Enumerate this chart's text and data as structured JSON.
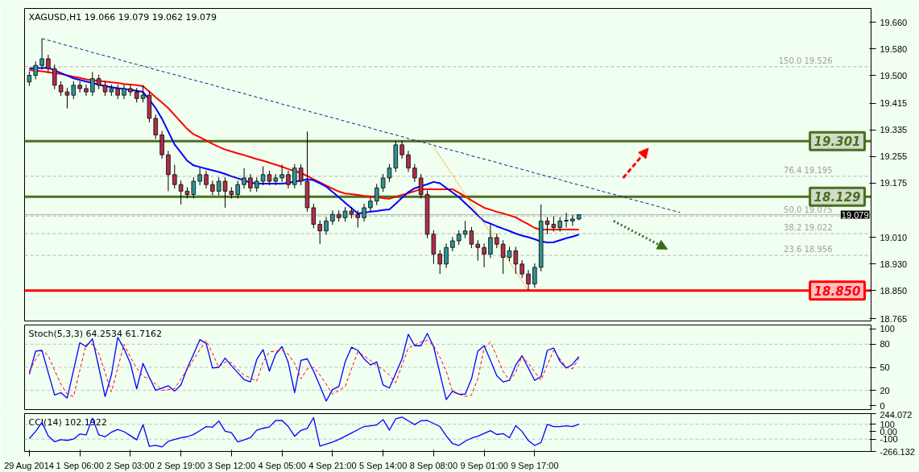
{
  "chart_data": [
    {
      "type": "candlestick",
      "title": "XAGUSD,H1  19.066 19.079 19.062 19.079",
      "categories": [
        null,
        null,
        null,
        null,
        null,
        null,
        null,
        null,
        null,
        null,
        null,
        null,
        null,
        null,
        null,
        null,
        null,
        null,
        null,
        null,
        null,
        null,
        null,
        null,
        null,
        null,
        null,
        null,
        null,
        null,
        null,
        null,
        null,
        null,
        null,
        null,
        null,
        null,
        null,
        null,
        null,
        null,
        null,
        null,
        null,
        null,
        null,
        null,
        null,
        null,
        null,
        null,
        null,
        null,
        null,
        null,
        null,
        null,
        null,
        null,
        null,
        null,
        null,
        null,
        null,
        null,
        null,
        null,
        null,
        null,
        null,
        null,
        null,
        null,
        null,
        null,
        null,
        null,
        null,
        null,
        null,
        null,
        null,
        null,
        null,
        null,
        null,
        null,
        null,
        null,
        null,
        null,
        null,
        null,
        null,
        null,
        null,
        null,
        null,
        null,
        null,
        null,
        null,
        null,
        null,
        null,
        null,
        null,
        null,
        null,
        null,
        null,
        null,
        null,
        null,
        null,
        null,
        null,
        null,
        null,
        null,
        null,
        null,
        null,
        null,
        null,
        null,
        null,
        null,
        null,
        null,
        null,
        null,
        null
      ],
      "ohlc": [
        [
          19.48,
          19.512,
          19.468,
          19.5
        ],
        [
          19.5,
          19.542,
          19.488,
          19.53
        ],
        [
          19.53,
          19.611,
          19.518,
          19.55
        ],
        [
          19.55,
          19.562,
          19.508,
          19.52
        ],
        [
          19.52,
          19.532,
          19.458,
          19.47
        ],
        [
          19.47,
          19.482,
          19.438,
          19.45
        ],
        [
          19.45,
          19.462,
          19.4,
          19.44
        ],
        [
          19.44,
          19.482,
          19.428,
          19.47
        ],
        [
          19.47,
          19.482,
          19.448,
          19.46
        ],
        [
          19.46,
          19.472,
          19.438,
          19.45
        ],
        [
          19.45,
          19.51,
          19.438,
          19.49
        ],
        [
          19.49,
          19.502,
          19.458,
          19.47
        ],
        [
          19.47,
          19.482,
          19.438,
          19.45
        ],
        [
          19.45,
          19.472,
          19.438,
          19.46
        ],
        [
          19.46,
          19.472,
          19.428,
          19.44
        ],
        [
          19.44,
          19.472,
          19.428,
          19.46
        ],
        [
          19.46,
          19.472,
          19.438,
          19.45
        ],
        [
          19.45,
          19.462,
          19.418,
          19.43
        ],
        [
          19.43,
          19.47,
          19.418,
          19.44
        ],
        [
          19.44,
          19.452,
          19.358,
          19.37
        ],
        [
          19.37,
          19.382,
          19.308,
          19.32
        ],
        [
          19.32,
          19.332,
          19.248,
          19.26
        ],
        [
          19.26,
          19.272,
          19.15,
          19.2
        ],
        [
          19.2,
          19.23,
          19.158,
          19.17
        ],
        [
          19.17,
          19.182,
          19.11,
          19.15
        ],
        [
          19.15,
          19.162,
          19.128,
          19.14
        ],
        [
          19.14,
          19.192,
          19.128,
          19.18
        ],
        [
          19.18,
          19.222,
          19.168,
          19.2
        ],
        [
          19.2,
          19.212,
          19.158,
          19.17
        ],
        [
          19.17,
          19.182,
          19.138,
          19.15
        ],
        [
          19.15,
          19.192,
          19.138,
          19.18
        ],
        [
          19.18,
          19.192,
          19.1,
          19.15
        ],
        [
          19.15,
          19.162,
          19.128,
          19.14
        ],
        [
          19.14,
          19.182,
          19.128,
          19.17
        ],
        [
          19.17,
          19.22,
          19.158,
          19.19
        ],
        [
          19.19,
          19.202,
          19.148,
          19.16
        ],
        [
          19.16,
          19.192,
          19.148,
          19.18
        ],
        [
          19.18,
          19.225,
          19.168,
          19.2
        ],
        [
          19.2,
          19.212,
          19.168,
          19.18
        ],
        [
          19.18,
          19.202,
          19.168,
          19.19
        ],
        [
          19.19,
          19.23,
          19.178,
          19.2
        ],
        [
          19.2,
          19.212,
          19.158,
          19.17
        ],
        [
          19.17,
          19.232,
          19.158,
          19.22
        ],
        [
          19.22,
          19.232,
          19.168,
          19.18
        ],
        [
          19.18,
          19.33,
          19.088,
          19.1
        ],
        [
          19.1,
          19.112,
          19.038,
          19.05
        ],
        [
          19.05,
          19.062,
          18.99,
          19.03
        ],
        [
          19.03,
          19.072,
          19.018,
          19.06
        ],
        [
          19.06,
          19.092,
          19.048,
          19.08
        ],
        [
          19.08,
          19.092,
          19.058,
          19.07
        ],
        [
          19.07,
          19.102,
          19.058,
          19.09
        ],
        [
          19.09,
          19.102,
          19.068,
          19.08
        ],
        [
          19.08,
          19.092,
          19.04,
          19.07
        ],
        [
          19.07,
          19.112,
          19.058,
          19.1
        ],
        [
          19.1,
          19.132,
          19.088,
          19.12
        ],
        [
          19.12,
          19.172,
          19.108,
          19.16
        ],
        [
          19.16,
          19.202,
          19.148,
          19.19
        ],
        [
          19.19,
          19.232,
          19.178,
          19.22
        ],
        [
          19.22,
          19.302,
          19.208,
          19.29
        ],
        [
          19.29,
          19.302,
          19.248,
          19.26
        ],
        [
          19.26,
          19.272,
          19.208,
          19.22
        ],
        [
          19.22,
          19.232,
          19.178,
          19.19
        ],
        [
          19.19,
          19.202,
          19.128,
          19.14
        ],
        [
          19.14,
          19.152,
          19.008,
          19.02
        ],
        [
          19.02,
          19.032,
          18.93,
          18.96
        ],
        [
          18.96,
          18.972,
          18.9,
          18.93
        ],
        [
          18.93,
          18.992,
          18.918,
          18.98
        ],
        [
          18.98,
          19.012,
          18.968,
          19.0
        ],
        [
          19.0,
          19.032,
          18.988,
          19.02
        ],
        [
          19.02,
          19.06,
          19.008,
          19.03
        ],
        [
          19.03,
          19.042,
          18.978,
          18.99
        ],
        [
          18.99,
          19.002,
          18.94,
          18.98
        ],
        [
          18.98,
          18.992,
          18.92,
          18.96
        ],
        [
          18.96,
          19.05,
          18.948,
          19.01
        ],
        [
          19.01,
          19.022,
          18.978,
          18.99
        ],
        [
          18.99,
          19.002,
          18.9,
          18.95
        ],
        [
          18.95,
          18.982,
          18.938,
          18.97
        ],
        [
          18.97,
          18.982,
          18.9,
          18.93
        ],
        [
          18.93,
          18.942,
          18.888,
          18.9
        ],
        [
          18.9,
          18.912,
          18.85,
          18.87
        ],
        [
          18.87,
          18.932,
          18.858,
          18.92
        ],
        [
          18.92,
          19.11,
          18.908,
          19.06
        ],
        [
          19.06,
          19.072,
          19.02,
          19.05
        ],
        [
          19.05,
          19.075,
          19.028,
          19.04
        ],
        [
          19.04,
          19.072,
          19.028,
          19.06
        ],
        [
          19.06,
          19.085,
          19.04,
          19.062
        ],
        [
          19.06,
          19.078,
          19.045,
          19.066
        ],
        [
          19.066,
          19.079,
          19.062,
          19.079
        ],
        null,
        null,
        null,
        null,
        null,
        null,
        null,
        null,
        null,
        null,
        null,
        null,
        null,
        null,
        null,
        null,
        null,
        null,
        null,
        null,
        null,
        null,
        null,
        null,
        null,
        null,
        null,
        null,
        null,
        null,
        null,
        null,
        null,
        null,
        null,
        null,
        null,
        null,
        null,
        null,
        null,
        null,
        null,
        null,
        null,
        null
      ],
      "colors": [
        "#2e9494",
        "#2e9494",
        "#2e9494",
        "#b22d4b",
        "#b22d4b",
        "#b22d4b",
        "#b22d4b",
        "#2e9494",
        "#b22d4b",
        "#b22d4b",
        "#2e9494",
        "#b22d4b",
        "#b22d4b",
        "#2e9494",
        "#b22d4b",
        "#2e9494",
        "#b22d4b",
        "#b22d4b",
        "#2e9494",
        "#b22d4b",
        "#b22d4b",
        "#b22d4b",
        "#b22d4b",
        "#b22d4b",
        "#b22d4b",
        "#b22d4b",
        "#2e9494",
        "#2e9494",
        "#b22d4b",
        "#b22d4b",
        "#2e9494",
        "#b22d4b",
        "#b22d4b",
        "#2e9494",
        "#2e9494",
        "#b22d4b",
        "#2e9494",
        "#2e9494",
        "#b22d4b",
        "#2e9494",
        "#2e9494",
        "#b22d4b",
        "#2e9494",
        "#b22d4b",
        "#b22d4b",
        "#b22d4b",
        "#b22d4b",
        "#2e9494",
        "#2e9494",
        "#b22d4b",
        "#2e9494",
        "#b22d4b",
        "#b22d4b",
        "#2e9494",
        "#2e9494",
        "#2e9494",
        "#2e9494",
        "#2e9494",
        "#2e9494",
        "#b22d4b",
        "#b22d4b",
        "#b22d4b",
        "#b22d4b",
        "#b22d4b",
        "#b22d4b",
        "#b22d4b",
        "#2e9494",
        "#2e9494",
        "#2e9494",
        "#2e9494",
        "#b22d4b",
        "#b22d4b",
        "#b22d4b",
        "#2e9494",
        "#b22d4b",
        "#b22d4b",
        "#2e9494",
        "#b22d4b",
        "#b22d4b",
        "#b22d4b",
        "#2e9494",
        "#2e9494",
        "#b22d4b",
        "#b22d4b",
        "#2e9494",
        "#2e9494",
        "#2e9494",
        "#2e9494",
        null,
        null,
        null,
        null,
        null,
        null,
        null,
        null,
        null,
        null,
        null,
        null,
        null,
        null,
        null,
        null,
        null,
        null,
        null,
        null,
        null,
        null,
        null,
        null,
        null,
        null,
        null,
        null,
        null,
        null,
        null,
        null,
        null,
        null,
        null,
        null,
        null,
        null,
        null,
        null,
        null,
        null,
        null,
        null,
        null,
        null
      ],
      "series": [
        {
          "type": "line",
          "color": "#ff0000",
          "line_style": "solid",
          "values": [
            19.516,
            19.514,
            19.512,
            19.509,
            19.507,
            19.504,
            19.5,
            19.496,
            19.492,
            19.488,
            19.485,
            19.483,
            19.481,
            19.479,
            19.477,
            19.474,
            19.472,
            19.47,
            19.467,
            19.451,
            19.434,
            19.418,
            19.401,
            19.38,
            19.359,
            19.338,
            19.322,
            19.313,
            19.303,
            19.293,
            19.284,
            19.276,
            19.27,
            19.264,
            19.259,
            19.253,
            19.247,
            19.242,
            19.236,
            19.23,
            19.224,
            19.217,
            19.211,
            19.205,
            19.196,
            19.186,
            19.177,
            19.167,
            19.158,
            19.149,
            19.143,
            19.141,
            19.139,
            19.136,
            19.134,
            19.132,
            19.129,
            19.127,
            19.133,
            19.139,
            19.144,
            19.15,
            19.156,
            19.156,
            19.156,
            19.156,
            19.156,
            19.156,
            19.145,
            19.134,
            19.122,
            19.111,
            19.1,
            19.094,
            19.088,
            19.083,
            19.077,
            19.071,
            19.06,
            19.05,
            19.039,
            19.034,
            19.034,
            19.034,
            19.034,
            19.034,
            19.034,
            19.034,
            null,
            null,
            null,
            null,
            null,
            null,
            null,
            null,
            null,
            null,
            null,
            null,
            null,
            null,
            null,
            null,
            null,
            null,
            null,
            null,
            null,
            null,
            null,
            null,
            null,
            null,
            null,
            null,
            null,
            null,
            null,
            null,
            null,
            null,
            null,
            null,
            null,
            null,
            null,
            null,
            null,
            null,
            null,
            null,
            null,
            null
          ]
        },
        {
          "type": "line",
          "color": "#0000ff",
          "line_style": "solid",
          "values": [
            19.521,
            19.522,
            19.522,
            19.523,
            19.515,
            19.507,
            19.499,
            19.491,
            19.486,
            19.481,
            19.477,
            19.472,
            19.467,
            19.464,
            19.461,
            19.459,
            19.456,
            19.453,
            19.45,
            19.426,
            19.401,
            19.369,
            19.33,
            19.291,
            19.267,
            19.242,
            19.228,
            19.223,
            19.218,
            19.213,
            19.208,
            19.202,
            19.195,
            19.189,
            19.183,
            19.176,
            19.173,
            19.173,
            19.173,
            19.173,
            19.173,
            19.175,
            19.179,
            19.182,
            19.186,
            19.183,
            19.174,
            19.164,
            19.148,
            19.132,
            19.115,
            19.099,
            19.083,
            19.085,
            19.088,
            19.09,
            19.093,
            19.095,
            19.112,
            19.13,
            19.147,
            19.159,
            19.165,
            19.171,
            19.178,
            19.174,
            19.16,
            19.146,
            19.132,
            19.114,
            19.096,
            19.077,
            19.059,
            19.052,
            19.044,
            19.037,
            19.03,
            19.022,
            19.016,
            19.011,
            19.005,
            18.998,
            18.995,
            18.996,
            19.002,
            19.008,
            19.013,
            19.019,
            null,
            null,
            null,
            null,
            null,
            null,
            null,
            null,
            null,
            null,
            null,
            null,
            null,
            null,
            null,
            null,
            null,
            null,
            null,
            null,
            null,
            null,
            null,
            null,
            null,
            null,
            null,
            null,
            null,
            null,
            null,
            null,
            null,
            null,
            null,
            null,
            null,
            null,
            null,
            null,
            null,
            null,
            null,
            null,
            null,
            null
          ]
        },
        {
          "type": "line",
          "color": "#1a1a8c",
          "line_style": "dashed",
          "values": [
            null,
            null,
            19.611,
            19.606,
            19.601,
            19.595,
            19.59,
            19.585,
            19.58,
            19.575,
            19.569,
            19.564,
            19.559,
            19.554,
            19.549,
            19.543,
            19.538,
            19.533,
            19.528,
            19.523,
            19.517,
            19.512,
            19.507,
            19.502,
            19.497,
            19.491,
            19.486,
            19.481,
            19.476,
            19.471,
            19.465,
            19.46,
            19.455,
            19.45,
            19.445,
            19.439,
            19.434,
            19.429,
            19.424,
            19.419,
            19.413,
            19.408,
            19.403,
            19.398,
            19.393,
            19.387,
            19.382,
            19.377,
            19.372,
            19.367,
            19.361,
            19.356,
            19.351,
            19.346,
            19.341,
            19.335,
            19.33,
            19.325,
            19.32,
            19.315,
            19.309,
            19.304,
            19.299,
            19.294,
            19.289,
            19.283,
            19.278,
            19.273,
            19.268,
            19.263,
            19.257,
            19.252,
            19.247,
            19.242,
            19.237,
            19.231,
            19.226,
            19.221,
            19.216,
            19.211,
            19.205,
            19.2,
            19.195,
            19.19,
            19.185,
            19.179,
            19.174,
            19.169,
            19.164,
            19.159,
            19.153,
            19.148,
            19.143,
            19.138,
            19.133,
            19.127,
            19.122,
            19.117,
            19.112,
            19.107,
            19.101,
            19.096,
            19.091,
            19.086,
            null,
            null,
            null,
            null,
            null,
            null,
            null,
            null,
            null,
            null,
            null,
            null,
            null,
            null,
            null,
            null,
            null,
            null,
            null,
            null,
            null,
            null,
            null,
            null,
            null,
            null,
            null,
            null,
            null,
            null
          ]
        },
        {
          "type": "line",
          "color": "#ff9900",
          "line_style": "dotted",
          "values": [
            null,
            null,
            null,
            null,
            null,
            null,
            null,
            null,
            null,
            null,
            null,
            null,
            null,
            null,
            null,
            null,
            null,
            null,
            null,
            null,
            null,
            null,
            null,
            null,
            null,
            null,
            null,
            null,
            null,
            null,
            null,
            null,
            null,
            null,
            null,
            null,
            null,
            null,
            null,
            null,
            null,
            null,
            null,
            null,
            null,
            null,
            null,
            null,
            null,
            null,
            null,
            null,
            null,
            null,
            null,
            null,
            null,
            null,
            null,
            null,
            null,
            null,
            null,
            null,
            19.285,
            19.256,
            19.227,
            19.198,
            19.169,
            19.14,
            19.111,
            19.082,
            19.053,
            19.024,
            18.995,
            18.966,
            18.937,
            18.908,
            18.879,
            18.85,
            null,
            null,
            null,
            null,
            null,
            null,
            null,
            null,
            null,
            null,
            null,
            null,
            null,
            null,
            null,
            null,
            null,
            null,
            null,
            null,
            null,
            null,
            null,
            null,
            null,
            null,
            null,
            null,
            null,
            null,
            null,
            null,
            null,
            null,
            null,
            null,
            null,
            null,
            null,
            null,
            null,
            null,
            null,
            null,
            null,
            null,
            null,
            null,
            null,
            null,
            null,
            null,
            null,
            null
          ]
        }
      ],
      "ref_lines": [
        {
          "axis": "y",
          "value": 19.526,
          "label": "150.0 19.526",
          "color": "#b4b4b4",
          "line_style": "dashed"
        },
        {
          "axis": "y",
          "value": 19.195,
          "label": "76.4 19.195",
          "color": "#b4b4b4",
          "line_style": "dashed"
        },
        {
          "axis": "y",
          "value": 19.075,
          "label": "50.0 19.075",
          "color": "#b4b4b4",
          "line_style": "dashed"
        },
        {
          "axis": "y",
          "value": 19.022,
          "label": "38.2 19.022",
          "color": "#b4b4b4",
          "line_style": "dashed"
        },
        {
          "axis": "y",
          "value": 18.956,
          "label": "23.6 18.956",
          "color": "#b4b4b4",
          "line_style": "dashed"
        },
        {
          "axis": "y",
          "value": 19.301,
          "label": "19.301",
          "color": "#4a7020",
          "line_style": "solid"
        },
        {
          "axis": "y",
          "value": 19.133,
          "color": "#4a7020",
          "line_style": "solid"
        },
        {
          "axis": "y",
          "value": 18.85,
          "label": "18.850",
          "color": "#ff0000",
          "line_style": "solid"
        },
        {
          "axis": "y",
          "value": 19.079,
          "label": "19.079",
          "color": "#b0b0b0",
          "line_style": "solid"
        }
      ],
      "annotations": [
        {
          "text": "18.129",
          "y": 19.133
        }
      ],
      "ylim": [
        18.758,
        19.702
      ],
      "yticks": [
        {
          "value": 19.66,
          "label": "19.660"
        },
        {
          "value": 19.58,
          "label": "19.580"
        },
        {
          "value": 19.5,
          "label": "19.500"
        },
        {
          "value": 19.415,
          "label": "19.415"
        },
        {
          "value": 19.335,
          "label": "19.335"
        },
        {
          "value": 19.255,
          "label": "19.255"
        },
        {
          "value": 19.175,
          "label": "19.175"
        },
        {
          "value": 19.01,
          "label": "19.010"
        },
        {
          "value": 18.93,
          "label": "18.930"
        },
        {
          "value": 18.85,
          "label": "18.850"
        },
        {
          "value": 18.765,
          "label": "18.765"
        }
      ],
      "tick_labels": "y"
    },
    {
      "type": "line",
      "title": "Stoch(5,3,3) 64.2534 61.7162",
      "categories": [
        null,
        null,
        null,
        null,
        null,
        null,
        null,
        null,
        null,
        null,
        null,
        null,
        null,
        null,
        null,
        null,
        null,
        null,
        null,
        null,
        null,
        null,
        null,
        null,
        null,
        null,
        null,
        null,
        null,
        null,
        null,
        null,
        null,
        null,
        null,
        null,
        null,
        null,
        null,
        null,
        null,
        null,
        null,
        null,
        null,
        null,
        null,
        null,
        null,
        null,
        null,
        null,
        null,
        null,
        null,
        null,
        null,
        null,
        null,
        null,
        null,
        null,
        null,
        null,
        null,
        null,
        null,
        null,
        null,
        null,
        null,
        null,
        null,
        null,
        null,
        null,
        null,
        null,
        null,
        null,
        null,
        null,
        null,
        null,
        null,
        null,
        null,
        null,
        null,
        null,
        null,
        null,
        null,
        null,
        null,
        null,
        null,
        null,
        null,
        null,
        null,
        null,
        null,
        null,
        null,
        null,
        null,
        null,
        null,
        null,
        null,
        null,
        null,
        null,
        null,
        null,
        null,
        null,
        null,
        null,
        null,
        null,
        null,
        null,
        null,
        null,
        null,
        null,
        null,
        null,
        null,
        null,
        null,
        null
      ],
      "series": [
        {
          "color": "#0000ff",
          "line_style": "solid",
          "values": [
            41,
            71,
            72,
            43,
            14,
            17,
            10,
            46,
            82,
            77,
            87,
            50,
            12,
            40,
            89,
            74,
            55,
            22,
            55,
            37,
            20,
            23,
            26,
            19,
            27,
            49,
            67,
            86,
            81,
            49,
            50,
            62,
            52,
            43,
            34,
            31,
            60,
            73,
            45,
            67,
            77,
            56,
            17,
            59,
            61,
            45,
            26,
            6,
            21,
            25,
            57,
            76,
            72,
            61,
            53,
            57,
            27,
            23,
            42,
            61,
            93,
            78,
            78,
            94,
            77,
            42,
            8,
            19,
            15,
            15,
            35,
            71,
            78,
            59,
            39,
            31,
            33,
            53,
            65,
            49,
            33,
            38,
            72,
            75,
            58,
            49,
            54,
            64,
            null,
            null,
            null,
            null,
            null,
            null,
            null,
            null,
            null,
            null,
            null,
            null,
            null,
            null,
            null,
            null,
            null,
            null,
            null,
            null,
            null,
            null,
            null,
            null,
            null,
            null,
            null,
            null,
            null,
            null,
            null,
            null,
            null,
            null,
            null,
            null,
            null,
            null,
            null,
            null,
            null,
            null,
            null,
            null,
            null,
            null
          ]
        },
        {
          "color": "#ff0000",
          "line_style": "dashed",
          "values": [
            45,
            60,
            72,
            65,
            46,
            28,
            15,
            12,
            46,
            80,
            80,
            68,
            43,
            18,
            49,
            80,
            63,
            49,
            38,
            35,
            28,
            20,
            21,
            22,
            35,
            47,
            60,
            73,
            85,
            68,
            50,
            57,
            56,
            47,
            40,
            36,
            32,
            57,
            70,
            71,
            72,
            67,
            55,
            35,
            48,
            50,
            40,
            28,
            15,
            20,
            25,
            48,
            70,
            65,
            59,
            52,
            47,
            40,
            30,
            53,
            75,
            79,
            83,
            85,
            78,
            63,
            45,
            18,
            15,
            12,
            14,
            35,
            75,
            83,
            64,
            45,
            33,
            43,
            65,
            55,
            44,
            33,
            53,
            72,
            61,
            50,
            48,
            62,
            null,
            null,
            null,
            null,
            null,
            null,
            null,
            null,
            null,
            null,
            null,
            null,
            null,
            null,
            null,
            null,
            null,
            null,
            null,
            null,
            null,
            null,
            null,
            null,
            null,
            null,
            null,
            null,
            null,
            null,
            null,
            null,
            null,
            null,
            null,
            null,
            null,
            null,
            null,
            null,
            null,
            null,
            null,
            null,
            null,
            null
          ]
        }
      ],
      "ref_lines": [
        {
          "axis": "y",
          "value": 80,
          "color": "#c0c0c0",
          "line_style": "dashed"
        },
        {
          "axis": "y",
          "value": 50,
          "color": "#c0c0c0",
          "line_style": "dashed"
        },
        {
          "axis": "y",
          "value": 20,
          "color": "#c0c0c0",
          "line_style": "dashed"
        }
      ],
      "ylim": [
        -5,
        105
      ],
      "yticks": [
        0,
        20,
        50,
        80,
        100
      ],
      "tick_labels": "y"
    },
    {
      "type": "line",
      "title": "CCI(14) 102.1922",
      "categories": [
        "29 Aug 2014",
        null,
        null,
        null,
        null,
        null,
        null,
        null,
        "1 Sep 06:00",
        null,
        null,
        null,
        null,
        null,
        null,
        null,
        "2 Sep 03:00",
        null,
        null,
        null,
        null,
        null,
        null,
        null,
        "2 Sep 19:00",
        null,
        null,
        null,
        null,
        null,
        null,
        null,
        "3 Sep 12:00",
        null,
        null,
        null,
        null,
        null,
        null,
        null,
        "4 Sep 05:00",
        null,
        null,
        null,
        null,
        null,
        null,
        null,
        "4 Sep 21:00",
        null,
        null,
        null,
        null,
        null,
        null,
        null,
        "5 Sep 14:00",
        null,
        null,
        null,
        null,
        null,
        null,
        null,
        "8 Sep 08:00",
        null,
        null,
        null,
        null,
        null,
        null,
        null,
        "9 Sep 01:00",
        null,
        null,
        null,
        null,
        null,
        null,
        null,
        "9 Sep 17:00",
        null,
        null,
        null,
        null,
        null,
        null,
        null,
        null,
        null,
        null,
        null,
        null,
        null,
        null,
        null,
        null,
        null,
        null,
        null,
        null,
        null,
        null,
        null,
        null,
        null,
        null,
        null,
        null,
        null,
        null,
        null,
        null,
        null,
        null,
        null,
        null,
        null,
        null,
        null,
        null,
        null,
        null,
        null,
        null,
        null,
        null,
        null,
        null,
        null,
        null,
        null,
        null,
        null
      ],
      "series": [
        {
          "color": "#0000ff",
          "line_style": "solid",
          "values": [
            -92,
            4,
            126,
            -57,
            -135,
            -107,
            -117,
            -100,
            -31,
            -43,
            183,
            -43,
            -68,
            -6,
            32,
            0,
            -53,
            -110,
            96,
            -198,
            -183,
            -205,
            -130,
            -106,
            -81,
            -68,
            -37,
            13,
            70,
            62,
            145,
            6,
            -12,
            -138,
            -110,
            -81,
            20,
            46,
            64,
            151,
            152,
            70,
            -62,
            18,
            45,
            190,
            -194,
            -167,
            -140,
            -104,
            -61,
            -17,
            27,
            70,
            80,
            91,
            164,
            22,
            174,
            196,
            146,
            96,
            147,
            152,
            111,
            70,
            -55,
            -160,
            -185,
            -128,
            -87,
            -62,
            -23,
            15,
            -38,
            -25,
            -81,
            81,
            4,
            -120,
            -185,
            -145,
            100,
            69,
            69,
            81,
            69,
            102,
            null,
            null,
            null,
            null,
            null,
            null,
            null,
            null,
            null,
            null,
            null,
            null,
            null,
            null,
            null,
            null,
            null,
            null,
            null,
            null,
            null,
            null,
            null,
            null,
            null,
            null,
            null,
            null,
            null,
            null,
            null,
            null,
            null,
            null,
            null,
            null,
            null,
            null,
            null,
            null,
            null,
            null,
            null,
            null,
            null,
            null
          ]
        }
      ],
      "ref_lines": [
        {
          "axis": "y",
          "value": 100,
          "color": "#c0c0c0",
          "line_style": "dashed"
        },
        {
          "axis": "y",
          "value": -100,
          "color": "#c0c0c0",
          "line_style": "dashed"
        }
      ],
      "ylim": [
        -266.132,
        244.072
      ],
      "yticks": [
        {
          "value": 244.072,
          "label": "244.072"
        },
        {
          "value": 100,
          "label": "100"
        },
        {
          "value": 0,
          "label": "0.00"
        },
        {
          "value": -100,
          "label": "-100"
        },
        {
          "value": -266.132,
          "label": "-266.132"
        }
      ]
    }
  ]
}
